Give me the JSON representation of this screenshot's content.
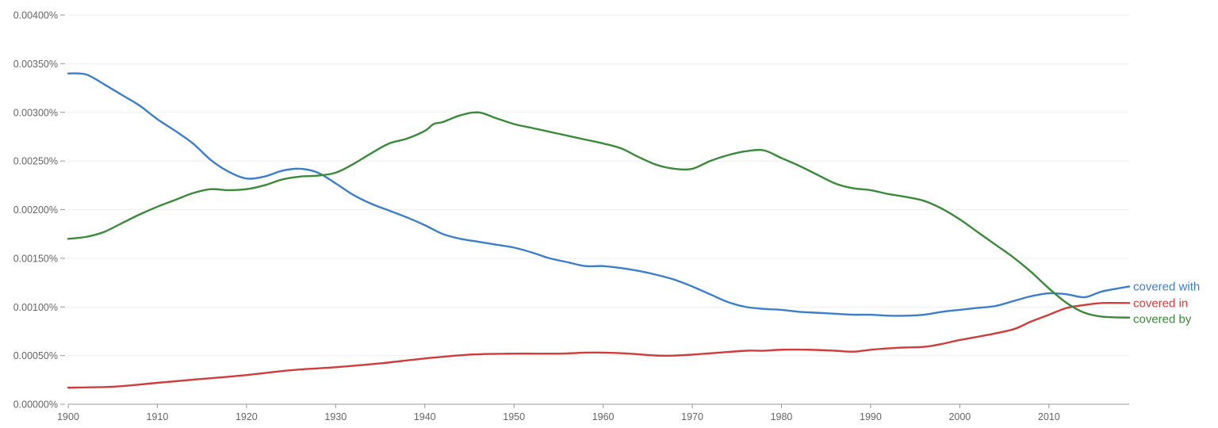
{
  "chart_data": {
    "type": "line",
    "title": "",
    "xlabel": "",
    "ylabel": "",
    "xlim": [
      1900,
      2019
    ],
    "ylim": [
      0,
      0.004
    ],
    "grid": true,
    "legend": "inline-right",
    "x_ticks": [
      1900,
      1910,
      1920,
      1930,
      1940,
      1950,
      1960,
      1970,
      1980,
      1990,
      2000,
      2010
    ],
    "y_ticks": [
      0,
      0.0005,
      0.001,
      0.0015,
      0.002,
      0.0025,
      0.003,
      0.0035,
      0.004
    ],
    "y_tick_labels": [
      "0.00000%",
      "0.00050%",
      "0.00100%",
      "0.00150%",
      "0.00200%",
      "0.00250%",
      "0.00300%",
      "0.00350%",
      "0.00400%"
    ],
    "x_tick_labels": [
      "1900",
      "1910",
      "1920",
      "1930",
      "1940",
      "1950",
      "1960",
      "1970",
      "1980",
      "1990",
      "2000",
      "2010"
    ],
    "series": [
      {
        "name": "covered with",
        "color": "#3b7fcc",
        "x": [
          1900,
          1902,
          1904,
          1906,
          1908,
          1910,
          1912,
          1914,
          1916,
          1918,
          1920,
          1922,
          1924,
          1926,
          1928,
          1930,
          1932,
          1934,
          1936,
          1938,
          1940,
          1942,
          1944,
          1946,
          1948,
          1950,
          1952,
          1954,
          1956,
          1958,
          1960,
          1962,
          1964,
          1966,
          1968,
          1970,
          1972,
          1974,
          1976,
          1978,
          1980,
          1982,
          1984,
          1986,
          1988,
          1990,
          1992,
          1994,
          1996,
          1998,
          2000,
          2002,
          2004,
          2006,
          2008,
          2010,
          2012,
          2014,
          2016,
          2019
        ],
        "values": [
          0.0034,
          0.00339,
          0.00329,
          0.00318,
          0.00307,
          0.00293,
          0.00281,
          0.00268,
          0.00251,
          0.00239,
          0.00232,
          0.00234,
          0.0024,
          0.00242,
          0.00238,
          0.00227,
          0.00215,
          0.00206,
          0.00199,
          0.00192,
          0.00184,
          0.00175,
          0.0017,
          0.00167,
          0.00164,
          0.00161,
          0.00156,
          0.0015,
          0.00146,
          0.00142,
          0.00142,
          0.0014,
          0.00137,
          0.00133,
          0.00128,
          0.00121,
          0.00113,
          0.00105,
          0.001,
          0.00098,
          0.00097,
          0.00095,
          0.00094,
          0.00093,
          0.00092,
          0.00092,
          0.00091,
          0.00091,
          0.00092,
          0.00095,
          0.00097,
          0.00099,
          0.00101,
          0.00106,
          0.00111,
          0.00114,
          0.00113,
          0.0011,
          0.00116,
          0.00121
        ]
      },
      {
        "name": "covered in",
        "color": "#d03c3c",
        "x": [
          1900,
          1905,
          1910,
          1915,
          1920,
          1925,
          1930,
          1935,
          1940,
          1945,
          1950,
          1955,
          1958,
          1960,
          1963,
          1966,
          1968,
          1970,
          1973,
          1976,
          1978,
          1980,
          1983,
          1986,
          1988,
          1990,
          1993,
          1996,
          1998,
          2000,
          2003,
          2006,
          2008,
          2010,
          2012,
          2014,
          2016,
          2019
        ],
        "values": [
          0.00017,
          0.00018,
          0.00022,
          0.00026,
          0.0003,
          0.00035,
          0.00038,
          0.00042,
          0.00047,
          0.00051,
          0.00052,
          0.00052,
          0.00053,
          0.00053,
          0.00052,
          0.0005,
          0.0005,
          0.00051,
          0.00053,
          0.00055,
          0.00055,
          0.00056,
          0.00056,
          0.00055,
          0.00054,
          0.00056,
          0.00058,
          0.00059,
          0.00062,
          0.00066,
          0.00071,
          0.00077,
          0.00085,
          0.00092,
          0.00099,
          0.00102,
          0.00104,
          0.00104
        ]
      },
      {
        "name": "covered by",
        "color": "#3a8a3a",
        "x": [
          1900,
          1902,
          1904,
          1906,
          1908,
          1910,
          1912,
          1914,
          1916,
          1918,
          1920,
          1922,
          1924,
          1926,
          1928,
          1930,
          1932,
          1934,
          1936,
          1938,
          1940,
          1941,
          1942,
          1944,
          1946,
          1948,
          1950,
          1952,
          1954,
          1956,
          1958,
          1960,
          1962,
          1964,
          1966,
          1968,
          1970,
          1972,
          1974,
          1976,
          1978,
          1980,
          1982,
          1984,
          1986,
          1988,
          1990,
          1992,
          1994,
          1996,
          1998,
          2000,
          2002,
          2004,
          2006,
          2008,
          2010,
          2012,
          2014,
          2016,
          2019
        ],
        "values": [
          0.0017,
          0.00172,
          0.00177,
          0.00186,
          0.00195,
          0.00203,
          0.0021,
          0.00217,
          0.00221,
          0.0022,
          0.00221,
          0.00225,
          0.00231,
          0.00234,
          0.00235,
          0.00238,
          0.00247,
          0.00258,
          0.00268,
          0.00273,
          0.00281,
          0.00288,
          0.0029,
          0.00297,
          0.003,
          0.00294,
          0.00288,
          0.00284,
          0.0028,
          0.00276,
          0.00272,
          0.00268,
          0.00263,
          0.00254,
          0.00246,
          0.00242,
          0.00242,
          0.0025,
          0.00256,
          0.0026,
          0.00261,
          0.00253,
          0.00245,
          0.00236,
          0.00227,
          0.00222,
          0.0022,
          0.00216,
          0.00213,
          0.00209,
          0.00201,
          0.0019,
          0.00177,
          0.00164,
          0.00151,
          0.00136,
          0.00119,
          0.00104,
          0.00094,
          0.0009,
          0.00089
        ]
      }
    ]
  }
}
